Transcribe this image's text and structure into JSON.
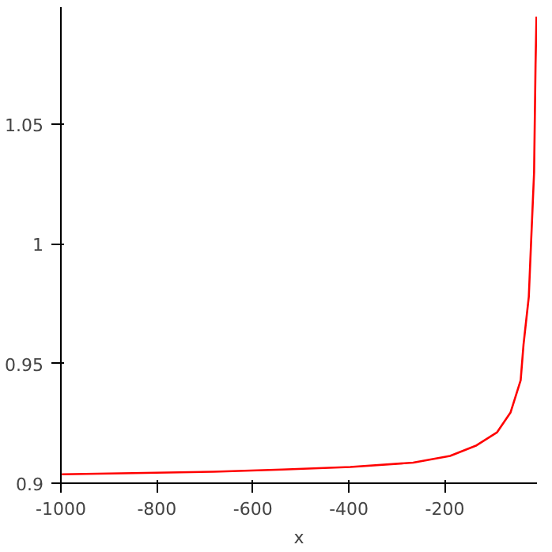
{
  "chart_data": {
    "type": "line",
    "xlabel": "x",
    "x": [
      -998,
      -850,
      -682,
      -539,
      -397,
      -266,
      -189,
      -134,
      -91,
      -63,
      -42,
      -36,
      -25,
      -20,
      -14,
      -11,
      -9
    ],
    "series": [
      {
        "color": "#ff0000",
        "values": [
          0.9037,
          0.9042,
          0.9048,
          0.9057,
          0.9068,
          0.9086,
          0.9114,
          0.9158,
          0.9213,
          0.9296,
          0.943,
          0.958,
          0.978,
          1.002,
          1.03,
          1.075,
          1.095
        ]
      }
    ],
    "xlim": [
      -1000,
      -8
    ],
    "ylim": [
      0.9,
      1.099
    ],
    "xticks": [
      -1000,
      -800,
      -600,
      -400,
      -200
    ],
    "yticks": [
      0.9,
      0.95,
      1,
      1.05
    ],
    "grid": false,
    "marker": "none",
    "line_style": "solid"
  }
}
